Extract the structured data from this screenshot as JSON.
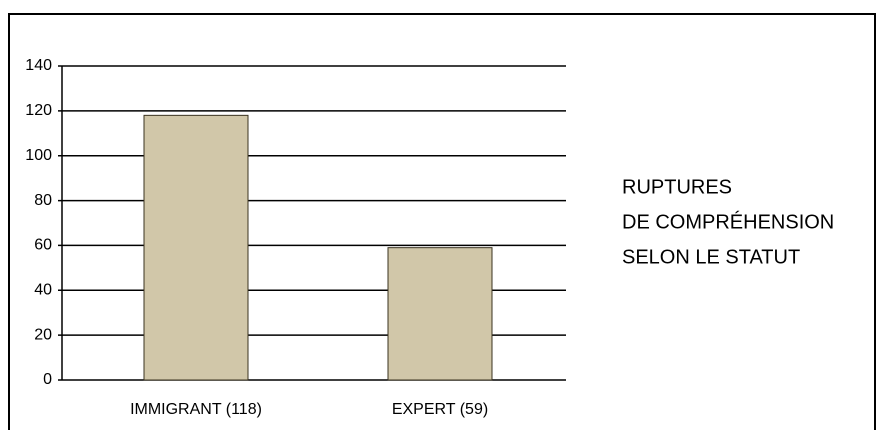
{
  "chart_data": {
    "type": "bar",
    "title": [
      "RUPTURES",
      "DE COMPRÉHENSION",
      "SELON LE STATUT"
    ],
    "categories": [
      "IMMIGRANT (118)",
      "EXPERT (59)"
    ],
    "values": [
      118,
      59
    ],
    "color": "#d1c7a9",
    "ylim": [
      0,
      140
    ],
    "yticks": [
      0,
      20,
      40,
      60,
      80,
      100,
      120,
      140
    ],
    "grid": true
  }
}
